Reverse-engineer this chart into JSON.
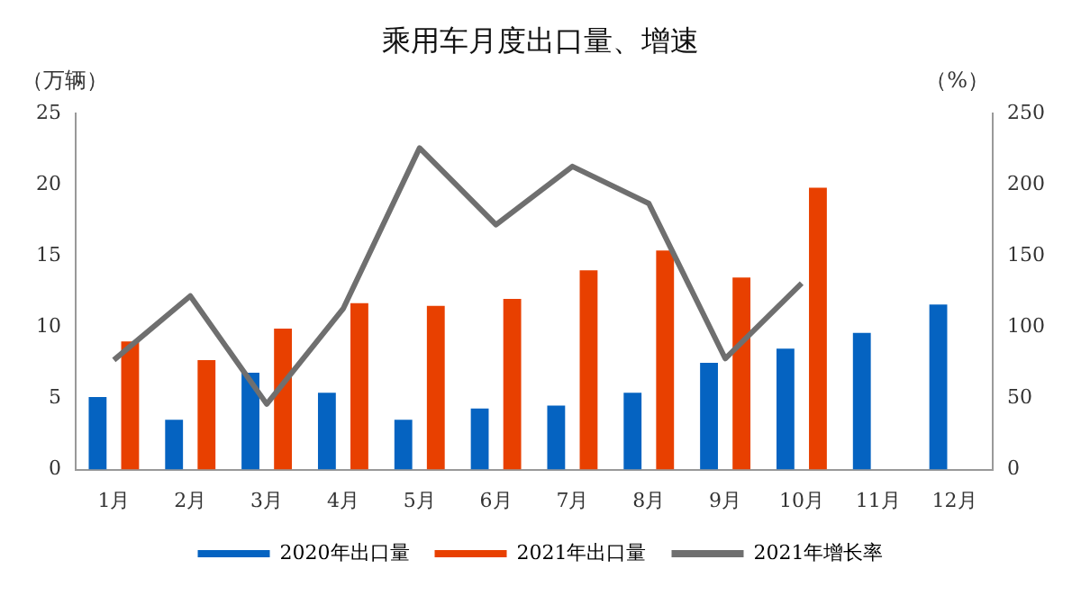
{
  "chart_data": {
    "type": "bar",
    "title": "乘用车月度出口量、增速",
    "ylabel": "（万辆）",
    "y2label": "（%）",
    "categories": [
      "1月",
      "2月",
      "3月",
      "4月",
      "5月",
      "6月",
      "7月",
      "8月",
      "9月",
      "10月",
      "11月",
      "12月"
    ],
    "series": [
      {
        "name": "2020年出口量",
        "color": "#0563c1",
        "values": [
          5.1,
          3.5,
          6.8,
          5.4,
          3.5,
          4.3,
          4.5,
          5.4,
          7.5,
          8.5,
          9.6,
          11.6
        ]
      },
      {
        "name": "2021年出口量",
        "color": "#e84000",
        "values": [
          9.0,
          7.7,
          9.9,
          11.7,
          11.5,
          12.0,
          14.0,
          15.4,
          13.5,
          19.8,
          null,
          null
        ]
      },
      {
        "name": "2021年增长率",
        "type": "line",
        "axis": "y2",
        "color": "#6f6f6f",
        "values": [
          77,
          122,
          46,
          113,
          226,
          172,
          213,
          187,
          78,
          131,
          null,
          null
        ]
      }
    ],
    "ylim": [
      0,
      25
    ],
    "yticks": [
      0,
      5,
      10,
      15,
      20,
      25
    ],
    "y2lim": [
      0,
      250
    ],
    "y2ticks": [
      0,
      50,
      100,
      150,
      200,
      250
    ],
    "grid": false,
    "legend": "bottom",
    "marker": "none"
  }
}
